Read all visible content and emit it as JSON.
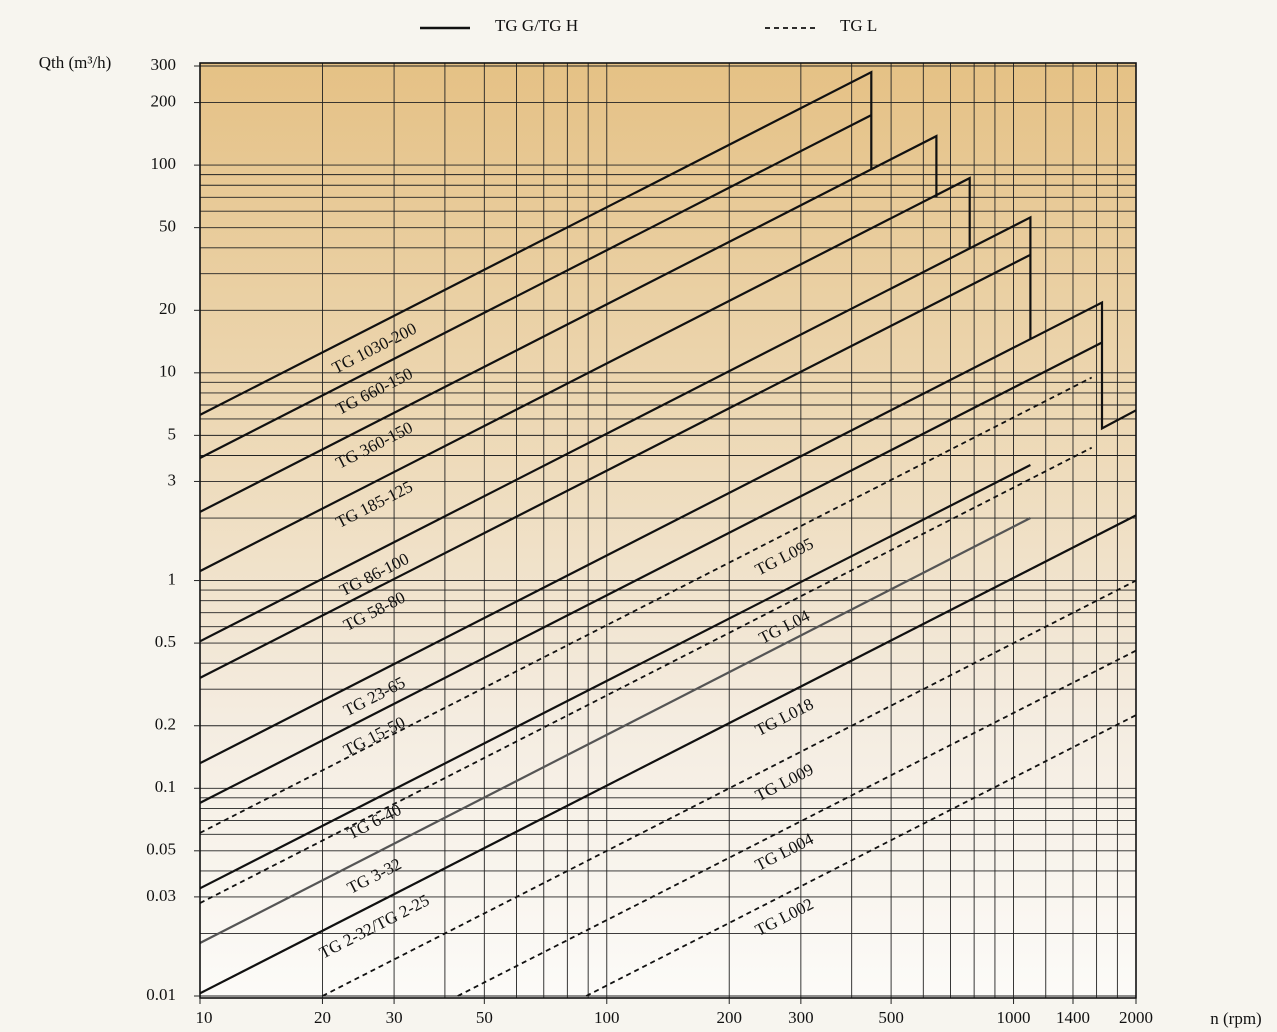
{
  "chart_data": {
    "type": "line",
    "y_label": "Qth (m³/h)",
    "x_label": "n (rpm)",
    "log_x": true,
    "log_y": true,
    "xlim": [
      10,
      2000
    ],
    "ylim": [
      0.01,
      300
    ],
    "xticks": [
      10,
      20,
      30,
      50,
      100,
      200,
      300,
      500,
      1000,
      1400,
      2000
    ],
    "yticks": [
      0.01,
      0.03,
      0.05,
      0.1,
      0.2,
      0.5,
      1,
      3,
      5,
      10,
      20,
      50,
      100,
      200,
      300
    ],
    "xgrid": [
      10,
      20,
      30,
      40,
      50,
      60,
      70,
      80,
      90,
      100,
      200,
      300,
      400,
      500,
      600,
      700,
      800,
      900,
      1000,
      1200,
      1400,
      1600,
      1800,
      2000
    ],
    "ygrid": [
      0.01,
      0.02,
      0.03,
      0.04,
      0.05,
      0.06,
      0.07,
      0.08,
      0.09,
      0.1,
      0.2,
      0.3,
      0.4,
      0.5,
      0.6,
      0.7,
      0.8,
      0.9,
      1,
      2,
      3,
      4,
      5,
      6,
      7,
      8,
      9,
      10,
      20,
      30,
      40,
      50,
      60,
      70,
      80,
      90,
      100,
      200,
      300
    ],
    "legend": [
      {
        "name": "TG G/TG H",
        "style": "solid"
      },
      {
        "name": "TG L",
        "style": "dashed"
      }
    ],
    "series": [
      {
        "name": "TG 1030-200",
        "group": 0,
        "color": "#111111",
        "x": [
          10,
          447,
          447
        ],
        "values": [
          6.27,
          280,
          95
        ]
      },
      {
        "name": "TG 660-150",
        "group": 0,
        "color": "#111111",
        "x": [
          10,
          447
        ],
        "values": [
          3.89,
          174
        ]
      },
      {
        "name": "TG 360-150",
        "group": 0,
        "color": "#111111",
        "x": [
          10,
          646,
          646
        ],
        "values": [
          2.14,
          138,
          70
        ]
      },
      {
        "name": "TG 185-125",
        "group": 0,
        "color": "#111111",
        "x": [
          10,
          780,
          780
        ],
        "values": [
          1.11,
          86.6,
          40
        ]
      },
      {
        "name": "TG 86-100",
        "group": 0,
        "color": "#111111",
        "x": [
          10,
          1100,
          1100
        ],
        "values": [
          0.51,
          56,
          14.5
        ]
      },
      {
        "name": "TG 58-80",
        "group": 0,
        "color": "#111111",
        "x": [
          10,
          1100
        ],
        "values": [
          0.34,
          37
        ]
      },
      {
        "name": "TG 23-65",
        "group": 0,
        "color": "#111111",
        "x": [
          10,
          1650,
          1650,
          2000
        ],
        "values": [
          0.132,
          21.8,
          5.4,
          6.6
        ]
      },
      {
        "name": "TG 15-50",
        "group": 0,
        "color": "#111111",
        "x": [
          10,
          1650
        ],
        "values": [
          0.085,
          14
        ]
      },
      {
        "name": "TG 6-40",
        "group": 0,
        "color": "#111111",
        "x": [
          10,
          1100
        ],
        "values": [
          0.033,
          3.6
        ]
      },
      {
        "name": "TG 3-32",
        "group": 0,
        "color": "#555555",
        "x": [
          10,
          1100
        ],
        "values": [
          0.018,
          2.0
        ]
      },
      {
        "name": "TG 2-32/TG 2-25",
        "group": 0,
        "color": "#111111",
        "x": [
          10,
          2000
        ],
        "values": [
          0.0103,
          2.06
        ]
      },
      {
        "name": "TG L095",
        "group": 1,
        "color": "#111111",
        "x": [
          10,
          1556
        ],
        "values": [
          0.061,
          9.5
        ]
      },
      {
        "name": "TG L04",
        "group": 1,
        "color": "#111111",
        "x": [
          10,
          1556
        ],
        "values": [
          0.028,
          4.36
        ]
      },
      {
        "name": "TG L018",
        "group": 1,
        "color": "#111111",
        "x": [
          10,
          2000
        ],
        "values": [
          0.0103,
          2.06
        ]
      },
      {
        "name": "TG L009",
        "group": 1,
        "color": "#111111",
        "x": [
          20,
          2000
        ],
        "values": [
          0.01,
          1.0
        ]
      },
      {
        "name": "TG L004",
        "group": 1,
        "color": "#111111",
        "x": [
          43,
          2000
        ],
        "values": [
          0.01,
          0.46
        ]
      },
      {
        "name": "TG L002",
        "group": 1,
        "color": "#111111",
        "x": [
          89,
          2000
        ],
        "values": [
          0.01,
          0.225
        ]
      }
    ]
  }
}
